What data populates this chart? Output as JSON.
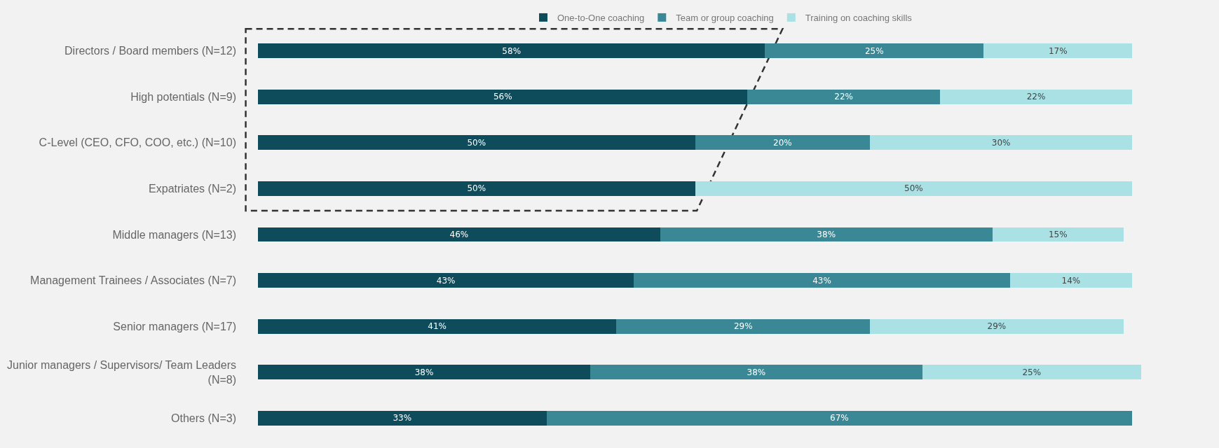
{
  "chart_data": {
    "type": "bar",
    "orientation": "horizontal",
    "stacked": true,
    "legend": "top",
    "grid": false,
    "tick_labels": "y",
    "categories": [
      "Directors / Board members (N=12)",
      "High potentials (N=9)",
      "C-Level (CEO, CFO, COO, etc.) (N=10)",
      "Expatriates (N=2)",
      "Middle managers (N=13)",
      "Management Trainees / Associates (N=7)",
      "Senior managers (N=17)",
      "Junior managers / Supervisors/ Team Leaders\n(N=8)",
      "Others (N=3)"
    ],
    "series": [
      {
        "name": "One-to-One coaching",
        "color": "#0e4c5c",
        "values": [
          58,
          56,
          50,
          50,
          46,
          43,
          41,
          38,
          33
        ],
        "value_labels": [
          "58%",
          "56%",
          "50%",
          "50%",
          "46%",
          "43%",
          "41%",
          "38%",
          "33%"
        ]
      },
      {
        "name": "Team or group coaching",
        "color": "#3a8896",
        "values": [
          25,
          22,
          20,
          0,
          38,
          43,
          29,
          38,
          67
        ],
        "value_labels": [
          "25%",
          "22%",
          "20%",
          null,
          "38%",
          "43%",
          "29%",
          "38%",
          "67%"
        ]
      },
      {
        "name": "Training on coaching skills",
        "color": "#a9e1e4",
        "values": [
          17,
          22,
          30,
          50,
          15,
          14,
          29,
          25,
          0
        ],
        "value_labels": [
          "17%",
          "22%",
          "30%",
          "50%",
          "15%",
          "14%",
          "29%",
          "25%",
          null
        ]
      }
    ]
  }
}
